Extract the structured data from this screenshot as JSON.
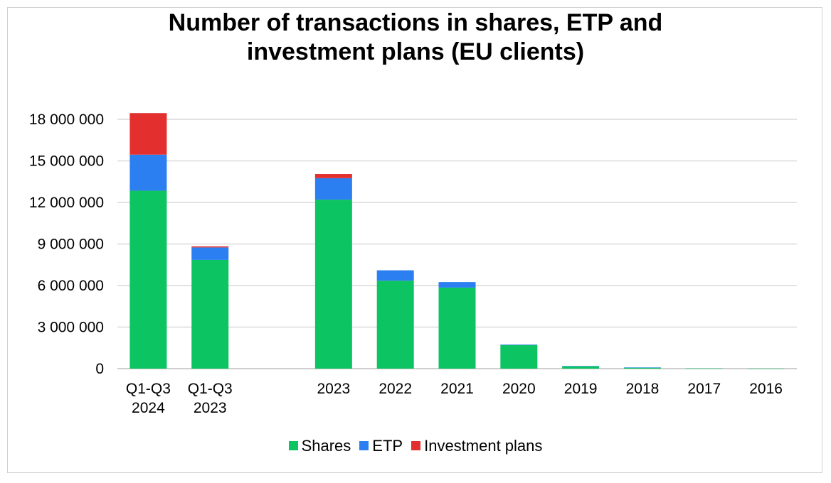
{
  "chart_data": {
    "type": "bar",
    "stacked": true,
    "title_lines": [
      "Number of transactions in shares, ETP and",
      "investment plans (EU clients)"
    ],
    "categories": [
      [
        "Q1-Q3",
        "2024"
      ],
      [
        "Q1-Q3",
        "2023"
      ],
      [
        ""
      ],
      [
        "2023"
      ],
      [
        "2022"
      ],
      [
        "2021"
      ],
      [
        "2020"
      ],
      [
        "2019"
      ],
      [
        "2018"
      ],
      [
        "2017"
      ],
      [
        "2016"
      ]
    ],
    "series": [
      {
        "name": "Shares",
        "color": "#0dc462",
        "values": [
          12850000,
          7850000,
          0,
          12200000,
          6350000,
          5850000,
          1700000,
          180000,
          80000,
          20000,
          10000
        ]
      },
      {
        "name": "ETP",
        "color": "#2b7ff0",
        "values": [
          2600000,
          900000,
          0,
          1550000,
          750000,
          400000,
          40000,
          10000,
          5000,
          0,
          0
        ]
      },
      {
        "name": "Investment plans",
        "color": "#e3302f",
        "values": [
          3000000,
          80000,
          0,
          300000,
          0,
          0,
          0,
          0,
          0,
          0,
          0
        ]
      }
    ],
    "yticks": [
      "0",
      "3 000 000",
      "6 000 000",
      "9 000 000",
      "12 000 000",
      "15 000 000",
      "18 000 000"
    ],
    "ylim": [
      0,
      18000000
    ],
    "grid": true,
    "legend_position": "bottom"
  }
}
